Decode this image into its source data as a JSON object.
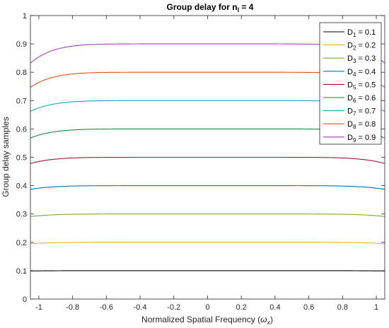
{
  "chart_data": {
    "type": "line",
    "title": "Group delay for n",
    "title_sub": "l",
    "title_tail": " = 4",
    "xlabel": "Normalized Spatial Frequency (",
    "xlabel_symbol": "ω",
    "xlabel_sub": "x",
    "xlabel_tail": ")",
    "ylabel": "Group delay samples",
    "xlim": [
      -1.05,
      1.05
    ],
    "ylim": [
      0,
      1
    ],
    "xticks": [
      -1,
      -0.8,
      -0.6,
      -0.4,
      -0.2,
      0,
      0.2,
      0.4,
      0.6,
      0.8,
      1
    ],
    "xtick_labels": [
      "-1",
      "-0.8",
      "-0.6",
      "-0.4",
      "-0.2",
      "0",
      "0.2",
      "0.4",
      "0.6",
      "0.8",
      "1"
    ],
    "yticks": [
      0,
      0.1,
      0.2,
      0.3,
      0.4,
      0.5,
      0.6,
      0.7,
      0.8,
      0.9,
      1
    ],
    "ytick_labels": [
      "0",
      "0.1",
      "0.2",
      "0.3",
      "0.4",
      "0.5",
      "0.6",
      "0.7",
      "0.8",
      "0.9",
      "1"
    ],
    "grid": false,
    "legend_position": "top-right",
    "series": [
      {
        "name": "D",
        "sub": "1",
        "value_label": " = 0.1",
        "level": 0.1,
        "edge_value": 0.099,
        "color": "#000000"
      },
      {
        "name": "D",
        "sub": "2",
        "value_label": " = 0.2",
        "level": 0.2,
        "edge_value": 0.195,
        "color": "#EDB120"
      },
      {
        "name": "D",
        "sub": "3",
        "value_label": " = 0.3",
        "level": 0.3,
        "edge_value": 0.291,
        "color": "#77AC30"
      },
      {
        "name": "D",
        "sub": "4",
        "value_label": " = 0.4",
        "level": 0.4,
        "edge_value": 0.387,
        "color": "#0072BD"
      },
      {
        "name": "D",
        "sub": "5",
        "value_label": " = 0.5",
        "level": 0.5,
        "edge_value": 0.478,
        "color": "#A2142F"
      },
      {
        "name": "D",
        "sub": "6",
        "value_label": " = 0.6",
        "level": 0.6,
        "edge_value": 0.568,
        "color": "#138A3E"
      },
      {
        "name": "D",
        "sub": "7",
        "value_label": " = 0.7",
        "level": 0.7,
        "edge_value": 0.662,
        "color": "#1AA3B8"
      },
      {
        "name": "D",
        "sub": "8",
        "value_label": " = 0.8",
        "level": 0.8,
        "edge_value": 0.747,
        "color": "#D95319"
      },
      {
        "name": "D",
        "sub": "9",
        "value_label": " = 0.9",
        "level": 0.9,
        "edge_value": 0.832,
        "color": "#A040C0"
      }
    ]
  }
}
